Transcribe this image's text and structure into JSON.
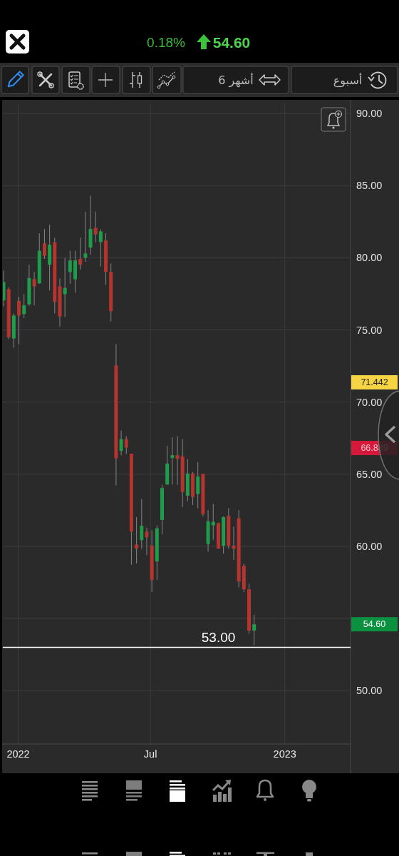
{
  "chart_data": {
    "type": "candlestick",
    "x": [
      "2021-12-12",
      "2021-12-19",
      "2021-12-26",
      "2022-01-02",
      "2022-01-09",
      "2022-01-16",
      "2022-01-23",
      "2022-01-30",
      "2022-02-06",
      "2022-02-13",
      "2022-02-20",
      "2022-02-27",
      "2022-03-06",
      "2022-03-13",
      "2022-03-20",
      "2022-03-27",
      "2022-04-03",
      "2022-04-10",
      "2022-04-17",
      "2022-04-24",
      "2022-05-01",
      "2022-05-08",
      "2022-05-15",
      "2022-05-22",
      "2022-05-29",
      "2022-06-05",
      "2022-06-12",
      "2022-06-19",
      "2022-06-26",
      "2022-07-03",
      "2022-07-10",
      "2022-07-17",
      "2022-07-24",
      "2022-07-31",
      "2022-08-07",
      "2022-08-14",
      "2022-08-21",
      "2022-08-28",
      "2022-09-04",
      "2022-09-11",
      "2022-09-18",
      "2022-09-25",
      "2022-10-02",
      "2022-10-09",
      "2022-10-16",
      "2022-10-23",
      "2022-10-30",
      "2022-11-06",
      "2022-11-13",
      "2022-11-20"
    ],
    "ohlc": [
      [
        77.04,
        79.11,
        76.63,
        78.32
      ],
      [
        77.82,
        77.96,
        74.36,
        74.49
      ],
      [
        74.41,
        76.14,
        73.76,
        76.0
      ],
      [
        77.01,
        77.29,
        74.01,
        76.0
      ],
      [
        76.1,
        77.49,
        75.81,
        76.72
      ],
      [
        76.77,
        79.52,
        76.67,
        78.6
      ],
      [
        78.53,
        79.02,
        76.72,
        78.03
      ],
      [
        78.23,
        81.7,
        78.2,
        80.48
      ],
      [
        81.0,
        82.0,
        79.92,
        80.13
      ],
      [
        79.52,
        82.29,
        77.74,
        80.91
      ],
      [
        81.07,
        81.39,
        76.14,
        76.95
      ],
      [
        78.02,
        78.56,
        75.23,
        75.93
      ],
      [
        77.48,
        80.01,
        75.89,
        77.92
      ],
      [
        79.01,
        80.48,
        78.2,
        79.82
      ],
      [
        78.51,
        80.48,
        77.59,
        79.82
      ],
      [
        79.92,
        81.4,
        79.19,
        79.52
      ],
      [
        80.01,
        83.2,
        79.72,
        80.3
      ],
      [
        80.71,
        84.31,
        80.21,
        82.0
      ],
      [
        82.08,
        83.2,
        81.09,
        81.62
      ],
      [
        81.09,
        81.97,
        79.39,
        81.83
      ],
      [
        81.2,
        81.7,
        78.12,
        79.02
      ],
      [
        79.02,
        79.6,
        75.59,
        76.3
      ],
      [
        72.54,
        74.02,
        64.22,
        66.1
      ],
      [
        66.62,
        68.02,
        66.32,
        67.43
      ],
      [
        67.44,
        67.64,
        66.4,
        66.85
      ],
      [
        66.42,
        66.42,
        58.73,
        61.02
      ],
      [
        60.13,
        62.03,
        58.81,
        59.84
      ],
      [
        60.43,
        63.27,
        59.84,
        61.42
      ],
      [
        61.02,
        61.29,
        59.39,
        60.63
      ],
      [
        60.05,
        61.12,
        56.83,
        57.67
      ],
      [
        58.95,
        61.45,
        57.67,
        61.25
      ],
      [
        61.83,
        64.26,
        60.83,
        64.04
      ],
      [
        64.29,
        66.98,
        64.26,
        65.74
      ],
      [
        66.12,
        67.56,
        64.29,
        66.32
      ],
      [
        66.32,
        67.64,
        64.26,
        66.07
      ],
      [
        66.24,
        67.43,
        62.72,
        63.76
      ],
      [
        63.51,
        66.04,
        63.13,
        65.05
      ],
      [
        65.05,
        65.16,
        62.86,
        63.43
      ],
      [
        63.63,
        65.83,
        62.64,
        64.84
      ],
      [
        65.03,
        65.03,
        62.08,
        62.24
      ],
      [
        60.16,
        62.52,
        59.64,
        61.73
      ],
      [
        61.45,
        62.94,
        60.46,
        61.7
      ],
      [
        61.62,
        61.62,
        59.84,
        59.84
      ],
      [
        60.05,
        62.08,
        59.5,
        62.03
      ],
      [
        62.11,
        62.64,
        59.84,
        60.05
      ],
      [
        60.05,
        61.37,
        59.06,
        59.84
      ],
      [
        61.95,
        62.52,
        57.16,
        57.57
      ],
      [
        58.65,
        58.81,
        56.83,
        57.03
      ],
      [
        57.03,
        57.41,
        53.95,
        54.16
      ],
      [
        54.16,
        55.26,
        53.12,
        54.6
      ]
    ],
    "colors": [
      "#1e9c4b",
      "#b4352f",
      "#1e9c4b",
      "#b4352f",
      "#1e9c4b",
      "#1e9c4b",
      "#b4352f",
      "#1e9c4b",
      "#b4352f",
      "#1e9c4b",
      "#b4352f",
      "#b4352f",
      "#1e9c4b",
      "#1e9c4b",
      "#1e9c4b",
      "#b4352f",
      "#1e9c4b",
      "#1e9c4b",
      "#b4352f",
      "#1e9c4b",
      "#b4352f",
      "#b4352f",
      "#b4352f",
      "#1e9c4b",
      "#b4352f",
      "#b4352f",
      "#b4352f",
      "#1e9c4b",
      "#b4352f",
      "#b4352f",
      "#1e9c4b",
      "#1e9c4b",
      "#1e9c4b",
      "#1e9c4b",
      "#b4352f",
      "#b4352f",
      "#1e9c4b",
      "#b4352f",
      "#1e9c4b",
      "#b4352f",
      "#1e9c4b",
      "#1e9c4b",
      "#b4352f",
      "#1e9c4b",
      "#b4352f",
      "#b4352f",
      "#b4352f",
      "#b4352f",
      "#b4352f",
      "#1e9c4b"
    ],
    "xlim": [
      "2021-12-11",
      "2023-04-01"
    ],
    "xticks": [
      {
        "value": "2022-01-01",
        "label": "2022"
      },
      {
        "value": "2022-07-01",
        "label": "Jul"
      },
      {
        "value": "2023-01-01",
        "label": "2023"
      }
    ],
    "ylim": [
      46.3,
      90.7
    ],
    "yticks": [
      {
        "value": 50,
        "label": "50.00"
      },
      {
        "value": 55,
        "label": null
      },
      {
        "value": 60,
        "label": "60.00"
      },
      {
        "value": 65,
        "label": "65.00"
      },
      {
        "value": 70,
        "label": "70.00"
      },
      {
        "value": 75,
        "label": "75.00"
      },
      {
        "value": 80,
        "label": "80.00"
      },
      {
        "value": 85,
        "label": "85.00"
      },
      {
        "value": 90,
        "label": "90.00"
      }
    ],
    "grid": true,
    "ref_lines": [
      {
        "axis": "y",
        "value": 53,
        "label": "53.00",
        "color": "#ffffff"
      }
    ],
    "annotations": [
      "0.18%",
      "54.60",
      "6 أشهر",
      "أسبوع",
      "71.442",
      "66.839",
      "54.60"
    ]
  }
}
